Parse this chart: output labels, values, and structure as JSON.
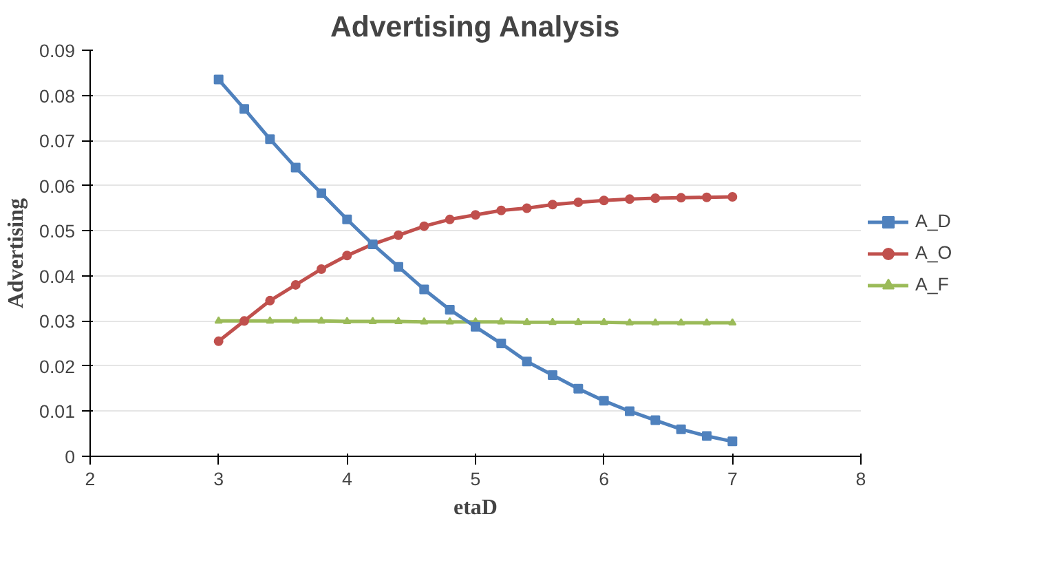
{
  "chart_data": {
    "type": "line",
    "title": "Advertising Analysis",
    "xlabel": "etaD",
    "ylabel": "Advertising",
    "x": [
      3,
      3.2,
      3.4,
      3.6,
      3.8,
      4,
      4.2,
      4.4,
      4.6,
      4.8,
      5,
      5.2,
      5.4,
      5.6,
      5.8,
      6,
      6.2,
      6.4,
      6.6,
      6.8,
      7
    ],
    "xlim": [
      2,
      8
    ],
    "xticks": [
      2,
      3,
      4,
      5,
      6,
      7,
      8
    ],
    "ylim": [
      0,
      0.09
    ],
    "yticks": [
      {
        "value": 0,
        "label": "0"
      },
      {
        "value": 0.01,
        "label": "0.01"
      },
      {
        "value": 0.02,
        "label": "0.02"
      },
      {
        "value": 0.03,
        "label": "0.03"
      },
      {
        "value": 0.04,
        "label": "0.04"
      },
      {
        "value": 0.05,
        "label": "0.05"
      },
      {
        "value": 0.06,
        "label": "0.06"
      },
      {
        "value": 0.07,
        "label": "0.07"
      },
      {
        "value": 0.08,
        "label": "0.08"
      },
      {
        "value": 0.09,
        "label": "0.09"
      }
    ],
    "grid": "y",
    "legend": "right",
    "series": [
      {
        "name": "A_D",
        "color": "#4f81bd",
        "marker": "square",
        "values": [
          0.0835,
          0.077,
          0.0703,
          0.064,
          0.0583,
          0.0525,
          0.047,
          0.042,
          0.037,
          0.0325,
          0.0287,
          0.025,
          0.021,
          0.018,
          0.015,
          0.0123,
          0.01,
          0.008,
          0.006,
          0.0045,
          0.0033
        ]
      },
      {
        "name": "A_O",
        "color": "#c0504d",
        "marker": "circle",
        "values": [
          0.0255,
          0.03,
          0.0345,
          0.038,
          0.0415,
          0.0445,
          0.047,
          0.049,
          0.051,
          0.0525,
          0.0535,
          0.0545,
          0.055,
          0.0558,
          0.0563,
          0.0567,
          0.057,
          0.0572,
          0.0573,
          0.0574,
          0.0575
        ]
      },
      {
        "name": "A_F",
        "color": "#9bbb59",
        "marker": "triangle",
        "values": [
          0.03,
          0.03,
          0.03,
          0.03,
          0.03,
          0.0299,
          0.0299,
          0.0299,
          0.0298,
          0.0298,
          0.0298,
          0.0298,
          0.0297,
          0.0297,
          0.0297,
          0.0297,
          0.0296,
          0.0296,
          0.0296,
          0.0296,
          0.0296
        ]
      }
    ]
  }
}
